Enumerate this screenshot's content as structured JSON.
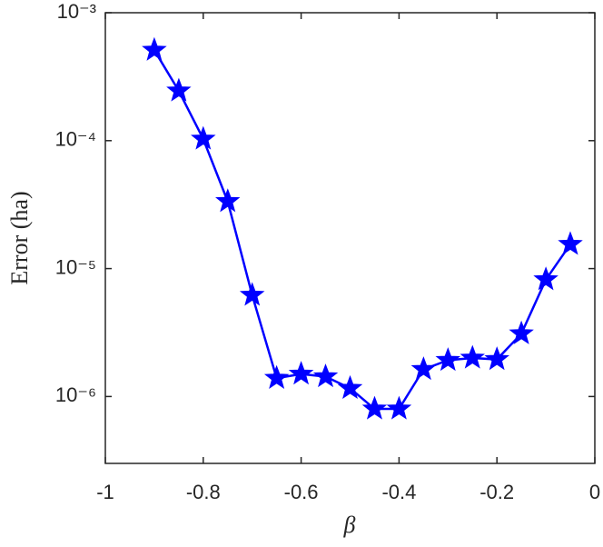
{
  "chart_data": {
    "type": "line",
    "x_label": "β",
    "y_label": "Error (ha)",
    "x": [
      -0.9,
      -0.85,
      -0.8,
      -0.75,
      -0.7,
      -0.65,
      -0.6,
      -0.55,
      -0.5,
      -0.45,
      -0.4,
      -0.35,
      -0.3,
      -0.25,
      -0.2,
      -0.15,
      -0.1,
      -0.05
    ],
    "series": [
      {
        "color": "#0000ff",
        "marker": "star",
        "values": [
          0.00051,
          0.000245,
          0.000103,
          3.35e-05,
          6.2e-06,
          1.39e-06,
          1.5e-06,
          1.43e-06,
          1.16e-06,
          8e-07,
          8e-07,
          1.63e-06,
          1.92e-06,
          2e-06,
          1.95e-06,
          3.1e-06,
          8.2e-06,
          1.55e-05
        ]
      }
    ],
    "xlim": [
      -1,
      0
    ],
    "xticks": [
      -1,
      -0.8,
      -0.6,
      -0.4,
      -0.2,
      0
    ],
    "ylim": [
      3e-07,
      0.001
    ],
    "y_log": true,
    "yticks": [
      {
        "value": 1e-06,
        "label": "10⁻⁶"
      },
      {
        "value": 1e-05,
        "label": "10⁻⁵"
      },
      {
        "value": 0.0001,
        "label": "10⁻⁴"
      },
      {
        "value": 0.001,
        "label": "10⁻³"
      }
    ],
    "grid": false
  }
}
